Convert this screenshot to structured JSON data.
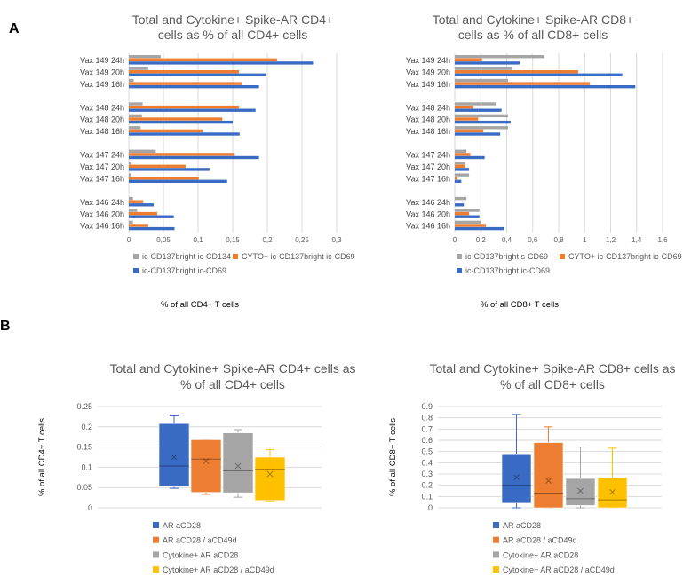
{
  "panels": {
    "a": "A",
    "b": "B"
  },
  "colors": {
    "gray": "#A5A5A5",
    "orange": "#ED7D31",
    "blue": "#3A6BC4",
    "yellow": "#FFC000",
    "grid": "#D9D9D9"
  },
  "chart_data": [
    {
      "type": "bar",
      "orientation": "horizontal",
      "title": [
        "Total and Cytokine+ Spike-AR CD4+",
        "cells as % of all CD4+ cells"
      ],
      "xlabel": "% of all CD4+ T cells",
      "xlim": [
        0,
        0.3
      ],
      "xticks": [
        "0",
        "0,05",
        "0,1",
        "0,15",
        "0,2",
        "0,25",
        "0,3"
      ],
      "categories": [
        "Vax 149 24h",
        "Vax 149 20h",
        "Vax 149 16h",
        "Vax 148 24h",
        "Vax 148 20h",
        "Vax 148 16h",
        "Vax 147 24h",
        "Vax 147 20h",
        "Vax 147 16h",
        "Vax 146 24h",
        "Vax 146 20h",
        "Vax 146 16h"
      ],
      "series": [
        {
          "name": "ic-CD137bright ic-CD134",
          "color": "gray",
          "values": [
            0.046,
            0.028,
            0.007,
            0.02,
            0.019,
            0.017,
            0.039,
            0.004,
            0.003,
            0.006,
            0.012,
            0.006
          ]
        },
        {
          "name": "CYTO+ ic-CD137bright ic-CD69",
          "color": "orange",
          "values": [
            0.214,
            0.159,
            0.163,
            0.159,
            0.135,
            0.107,
            0.153,
            0.082,
            0.101,
            0.021,
            0.041,
            0.028
          ]
        },
        {
          "name": "ic-CD137bright ic-CD69",
          "color": "blue",
          "values": [
            0.266,
            0.198,
            0.188,
            0.183,
            0.15,
            0.16,
            0.188,
            0.117,
            0.142,
            0.036,
            0.065,
            0.066
          ]
        }
      ]
    },
    {
      "type": "bar",
      "orientation": "horizontal",
      "title": [
        "Total and Cytokine+ Spike-AR CD8+",
        "cells as % of all CD8+ cells"
      ],
      "xlabel": "% of all CD8+ T cells",
      "xlim": [
        0,
        1.6
      ],
      "xticks": [
        "0",
        "0,2",
        "0,4",
        "0,6",
        "0,8",
        "1",
        "1,2",
        "1,4",
        "1,6"
      ],
      "categories": [
        "Vax 149 24h",
        "Vax 149 20h",
        "Vax 149 16h",
        "Vax 148 24h",
        "Vax 148 20h",
        "Vax 148 16h",
        "Vax 147 24h",
        "Vax 147 20h",
        "Vax 147 16h",
        "Vax 146 24h",
        "Vax 146 20h",
        "Vax 146 16h"
      ],
      "series": [
        {
          "name": "ic-CD137bright s-CD69",
          "color": "gray",
          "values": [
            0.69,
            0.44,
            0.41,
            0.32,
            0.41,
            0.41,
            0.09,
            0.08,
            0.11,
            0.09,
            0.19,
            0.2
          ]
        },
        {
          "name": "CYTO+ ic-CD137bright ic-CD69",
          "color": "orange",
          "values": [
            0.21,
            0.95,
            1.04,
            0.14,
            0.18,
            0.22,
            0.12,
            0.08,
            0.02,
            0.0,
            0.11,
            0.24
          ]
        },
        {
          "name": "ic-CD137bright ic-CD69",
          "color": "blue",
          "values": [
            0.5,
            1.29,
            1.39,
            0.36,
            0.43,
            0.35,
            0.23,
            0.11,
            0.05,
            0.07,
            0.19,
            0.38
          ]
        }
      ]
    },
    {
      "type": "box",
      "title": [
        "Total and Cytokine+ Spike-AR CD4+ cells as",
        "% of all CD4+ cells"
      ],
      "ylabel": "% of all CD4+ T cells",
      "ylim": [
        0,
        0.25
      ],
      "yticks": [
        "0",
        "0.05",
        "0.1",
        "0.15",
        "0.2",
        "0.25"
      ],
      "series": [
        {
          "name": "AR aCD28",
          "color": "blue",
          "min": 0.048,
          "q1": 0.052,
          "median": 0.103,
          "q3": 0.208,
          "max": 0.227,
          "mean": 0.125
        },
        {
          "name": "AR aCD28 / aCD49d",
          "color": "orange",
          "min": 0.033,
          "q1": 0.038,
          "median": 0.12,
          "q3": 0.168,
          "max": 0.168,
          "mean": 0.115
        },
        {
          "name": "Cytokine+ AR aCD28",
          "color": "gray",
          "min": 0.026,
          "q1": 0.037,
          "median": 0.091,
          "q3": 0.185,
          "max": 0.193,
          "mean": 0.103
        },
        {
          "name": "Cytokine+ AR aCD28 / aCD49d",
          "color": "yellow",
          "min": 0.017,
          "q1": 0.018,
          "median": 0.095,
          "q3": 0.125,
          "max": 0.144,
          "mean": 0.083
        }
      ]
    },
    {
      "type": "box",
      "title": [
        "Total and Cytokine+ Spike-AR CD8+ cells as",
        "% of all CD8+ cells"
      ],
      "ylabel": "% of all CD8+ T cells",
      "ylim": [
        0,
        0.9
      ],
      "yticks": [
        "0",
        "0.1",
        "0.2",
        "0.3",
        "0.4",
        "0.5",
        "0.6",
        "0.7",
        "0.8",
        "0.9"
      ],
      "series": [
        {
          "name": "AR aCD28",
          "color": "blue",
          "min": 0.0,
          "q1": 0.04,
          "median": 0.2,
          "q3": 0.48,
          "max": 0.83,
          "mean": 0.27
        },
        {
          "name": "AR aCD28 / aCD49d",
          "color": "orange",
          "min": 0.0,
          "q1": 0.0,
          "median": 0.13,
          "q3": 0.58,
          "max": 0.72,
          "mean": 0.24
        },
        {
          "name": "Cytokine+ AR aCD28",
          "color": "gray",
          "min": 0.0,
          "q1": 0.02,
          "median": 0.08,
          "q3": 0.26,
          "max": 0.54,
          "mean": 0.15
        },
        {
          "name": "Cytokine+ AR aCD28 / aCD49d",
          "color": "yellow",
          "min": 0.0,
          "q1": 0.0,
          "median": 0.07,
          "q3": 0.27,
          "max": 0.53,
          "mean": 0.14
        }
      ]
    }
  ]
}
